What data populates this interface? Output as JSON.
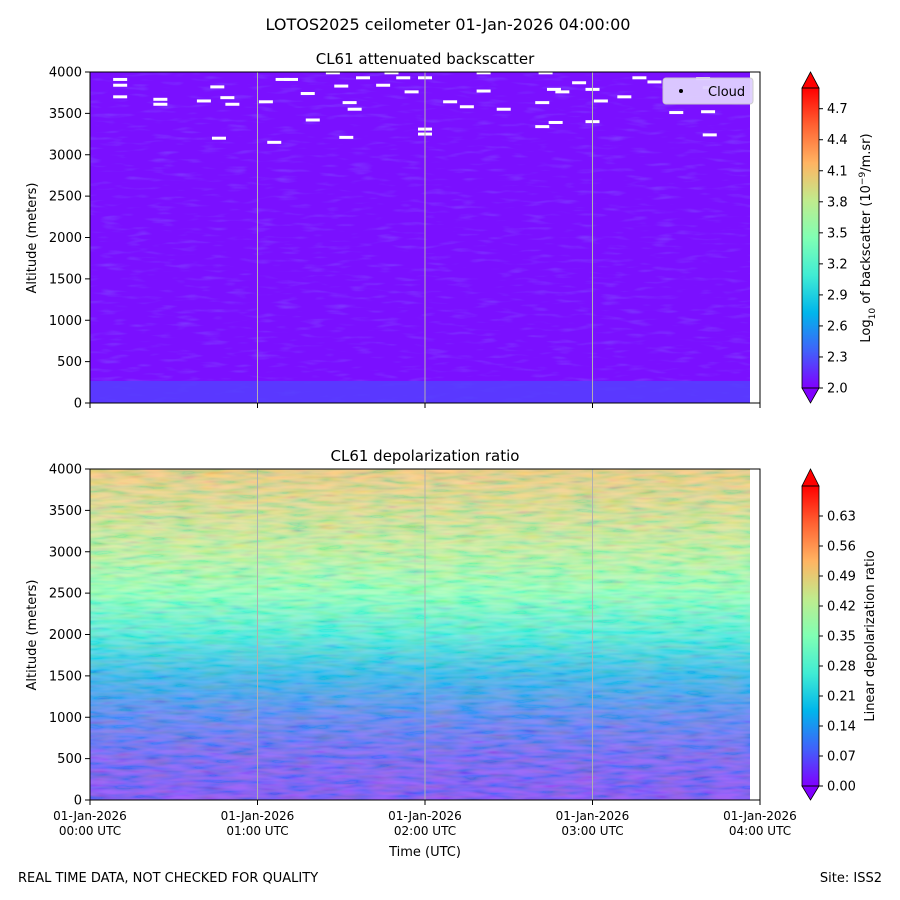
{
  "figure": {
    "title": "LOTOS2025 ceilometer 01-Jan-2026 04:00:00",
    "footer_left": "REAL TIME DATA, NOT CHECKED FOR QUALITY",
    "footer_right": "Site: ISS2"
  },
  "chart_data": [
    {
      "type": "heatmap",
      "title": "CL61 attenuated backscatter",
      "xlabel": "",
      "ylabel": "Altitude (meters)",
      "x_range": [
        "01-Jan-2026 00:00 UTC",
        "01-Jan-2026 04:00 UTC"
      ],
      "ylim": [
        0,
        4000
      ],
      "yticks": [
        0,
        500,
        1000,
        1500,
        2000,
        2500,
        3000,
        3500,
        4000
      ],
      "x_gridlines_hours": [
        1,
        2,
        3
      ],
      "colormap": "rainbow",
      "colorbar": {
        "label_prefix": "Log",
        "label_sub": "10",
        "label_mid": " of backscatter (10",
        "label_sup": "−9",
        "label_suffix": "/m.sr)",
        "range": [
          2.0,
          4.9
        ],
        "ticks": [
          "2.0",
          "2.3",
          "2.6",
          "2.9",
          "3.2",
          "3.5",
          "3.8",
          "4.1",
          "4.4",
          "4.7"
        ],
        "extend": "both"
      },
      "legend": {
        "entries": [
          "Cloud"
        ],
        "position": "upper right"
      },
      "field_description": {
        "near_surface_value": 2.25,
        "background_value": 2.08
      },
      "cloud_points": [
        {
          "t": 0.18,
          "alt": 3910
        },
        {
          "t": 0.18,
          "alt": 3840
        },
        {
          "t": 0.18,
          "alt": 3700
        },
        {
          "t": 0.42,
          "alt": 3670
        },
        {
          "t": 0.42,
          "alt": 3610
        },
        {
          "t": 0.68,
          "alt": 3650
        },
        {
          "t": 0.76,
          "alt": 3820
        },
        {
          "t": 0.82,
          "alt": 3690
        },
        {
          "t": 0.85,
          "alt": 3610
        },
        {
          "t": 0.77,
          "alt": 3200
        },
        {
          "t": 1.05,
          "alt": 3640
        },
        {
          "t": 1.15,
          "alt": 3910
        },
        {
          "t": 1.2,
          "alt": 3910
        },
        {
          "t": 1.3,
          "alt": 3740
        },
        {
          "t": 1.33,
          "alt": 3420
        },
        {
          "t": 1.1,
          "alt": 3150
        },
        {
          "t": 1.45,
          "alt": 3990
        },
        {
          "t": 1.5,
          "alt": 3830
        },
        {
          "t": 1.55,
          "alt": 3630
        },
        {
          "t": 1.58,
          "alt": 3550
        },
        {
          "t": 1.53,
          "alt": 3210
        },
        {
          "t": 1.63,
          "alt": 3930
        },
        {
          "t": 1.8,
          "alt": 3990
        },
        {
          "t": 1.87,
          "alt": 3930
        },
        {
          "t": 1.75,
          "alt": 3840
        },
        {
          "t": 1.92,
          "alt": 3760
        },
        {
          "t": 2.0,
          "alt": 3930
        },
        {
          "t": 2.0,
          "alt": 3310
        },
        {
          "t": 2.0,
          "alt": 3250
        },
        {
          "t": 2.15,
          "alt": 3640
        },
        {
          "t": 2.25,
          "alt": 3580
        },
        {
          "t": 2.35,
          "alt": 3770
        },
        {
          "t": 2.35,
          "alt": 3990
        },
        {
          "t": 2.47,
          "alt": 3550
        },
        {
          "t": 2.72,
          "alt": 3990
        },
        {
          "t": 2.77,
          "alt": 3790
        },
        {
          "t": 2.82,
          "alt": 3760
        },
        {
          "t": 2.7,
          "alt": 3630
        },
        {
          "t": 2.78,
          "alt": 3390
        },
        {
          "t": 2.7,
          "alt": 3340
        },
        {
          "t": 2.92,
          "alt": 3870
        },
        {
          "t": 3.0,
          "alt": 3790
        },
        {
          "t": 3.05,
          "alt": 3650
        },
        {
          "t": 3.0,
          "alt": 3400
        },
        {
          "t": 3.19,
          "alt": 3700
        },
        {
          "t": 3.28,
          "alt": 3930
        },
        {
          "t": 3.37,
          "alt": 3880
        },
        {
          "t": 3.5,
          "alt": 3510
        },
        {
          "t": 3.66,
          "alt": 3920
        },
        {
          "t": 3.7,
          "alt": 3810
        },
        {
          "t": 3.69,
          "alt": 3520
        },
        {
          "t": 3.7,
          "alt": 3240
        }
      ]
    },
    {
      "type": "heatmap",
      "title": "CL61 depolarization ratio",
      "xlabel": "Time (UTC)",
      "ylabel": "Altitude (meters)",
      "x_range": [
        "01-Jan-2026 00:00 UTC",
        "01-Jan-2026 04:00 UTC"
      ],
      "ylim": [
        0,
        4000
      ],
      "yticks": [
        0,
        500,
        1000,
        1500,
        2000,
        2500,
        3000,
        3500,
        4000
      ],
      "xticks": [
        {
          "hour": 0,
          "date": "01-Jan-2026",
          "time": "00:00 UTC"
        },
        {
          "hour": 1,
          "date": "01-Jan-2026",
          "time": "01:00 UTC"
        },
        {
          "hour": 2,
          "date": "01-Jan-2026",
          "time": "02:00 UTC"
        },
        {
          "hour": 3,
          "date": "01-Jan-2026",
          "time": "03:00 UTC"
        },
        {
          "hour": 4,
          "date": "01-Jan-2026",
          "time": "04:00 UTC"
        }
      ],
      "x_gridlines_hours": [
        1,
        2,
        3
      ],
      "colormap": "rainbow",
      "colorbar": {
        "label": "Linear depolarization ratio",
        "range": [
          0.0,
          0.7
        ],
        "ticks": [
          "0.00",
          "0.07",
          "0.14",
          "0.21",
          "0.28",
          "0.35",
          "0.42",
          "0.49",
          "0.56",
          "0.63"
        ],
        "extend": "both"
      },
      "field_description": {
        "profile": [
          {
            "alt": 0,
            "value": 0.02
          },
          {
            "alt": 500,
            "value": 0.04
          },
          {
            "alt": 1000,
            "value": 0.08
          },
          {
            "alt": 1500,
            "value": 0.15
          },
          {
            "alt": 2000,
            "value": 0.25
          },
          {
            "alt": 2500,
            "value": 0.36
          },
          {
            "alt": 3000,
            "value": 0.44
          },
          {
            "alt": 3500,
            "value": 0.48
          },
          {
            "alt": 4000,
            "value": 0.52
          }
        ]
      }
    }
  ],
  "colors": {
    "rainbow": [
      "#8000ff",
      "#4062fa",
      "#00b5eb",
      "#40ecd4",
      "#80ffb4",
      "#c0eb8d",
      "#ffb462",
      "#ff6232",
      "#ff0000"
    ],
    "grid": "#b0b0b0",
    "cloud_marker": "#ffffff",
    "legend_bg": "#e0d0ff"
  }
}
